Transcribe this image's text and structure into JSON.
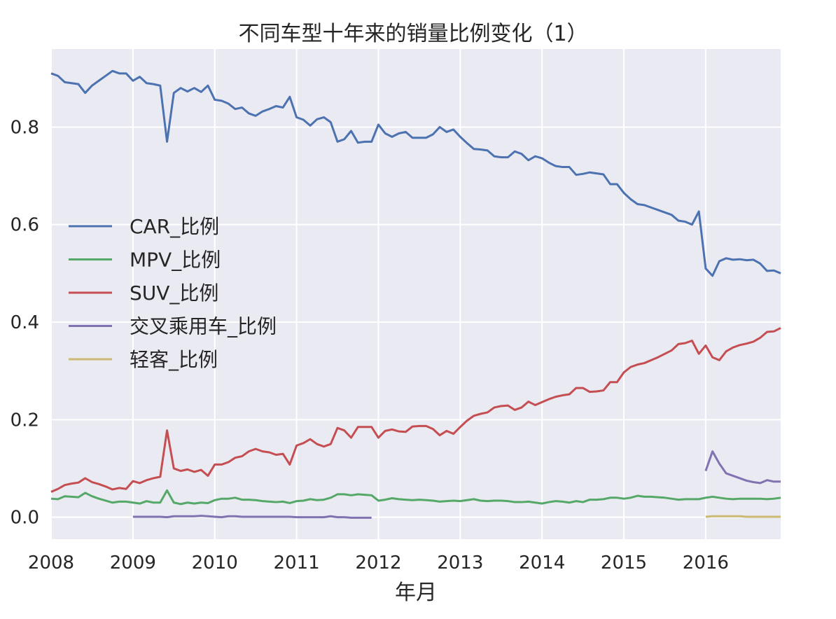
{
  "chart_data": {
    "type": "line",
    "title": "不同车型十年来的销量比例变化（1）",
    "xlabel": "年月",
    "ylabel": "",
    "x_ticks": [
      "2008",
      "2009",
      "2010",
      "2011",
      "2012",
      "2013",
      "2014",
      "2015",
      "2016"
    ],
    "y_ticks": [
      "0.0",
      "0.2",
      "0.4",
      "0.6",
      "0.8"
    ],
    "xlim": [
      "2008-01",
      "2016-12"
    ],
    "ylim": [
      -0.045,
      0.96
    ],
    "grid": true,
    "legend_position": "center-left",
    "x_start": "2008-01",
    "series": [
      {
        "name": "CAR_比例",
        "color": "#4C72B0",
        "start": "2008-01",
        "values": [
          0.91,
          0.905,
          0.892,
          0.89,
          0.888,
          0.87,
          0.885,
          0.895,
          0.905,
          0.915,
          0.91,
          0.91,
          0.895,
          0.903,
          0.89,
          0.888,
          0.885,
          0.77,
          0.87,
          0.88,
          0.873,
          0.88,
          0.872,
          0.885,
          0.856,
          0.854,
          0.848,
          0.837,
          0.84,
          0.828,
          0.823,
          0.832,
          0.837,
          0.843,
          0.84,
          0.862,
          0.82,
          0.815,
          0.803,
          0.816,
          0.82,
          0.81,
          0.77,
          0.775,
          0.792,
          0.768,
          0.77,
          0.77,
          0.805,
          0.787,
          0.78,
          0.787,
          0.79,
          0.778,
          0.778,
          0.778,
          0.785,
          0.8,
          0.79,
          0.795,
          0.78,
          0.767,
          0.755,
          0.754,
          0.752,
          0.74,
          0.738,
          0.738,
          0.75,
          0.745,
          0.732,
          0.74,
          0.736,
          0.727,
          0.72,
          0.718,
          0.718,
          0.702,
          0.704,
          0.707,
          0.705,
          0.703,
          0.683,
          0.683,
          0.665,
          0.652,
          0.642,
          0.64,
          0.635,
          0.63,
          0.625,
          0.62,
          0.608,
          0.606,
          0.6,
          0.627,
          0.51,
          0.495,
          0.525,
          0.531,
          0.528,
          0.529,
          0.527,
          0.528,
          0.52,
          0.505,
          0.506,
          0.5
        ]
      },
      {
        "name": "MPV_比例",
        "color": "#55A868",
        "start": "2008-01",
        "values": [
          0.038,
          0.037,
          0.043,
          0.042,
          0.041,
          0.05,
          0.043,
          0.038,
          0.034,
          0.03,
          0.032,
          0.032,
          0.03,
          0.028,
          0.033,
          0.03,
          0.03,
          0.055,
          0.03,
          0.027,
          0.03,
          0.028,
          0.03,
          0.029,
          0.035,
          0.038,
          0.038,
          0.04,
          0.036,
          0.036,
          0.035,
          0.033,
          0.032,
          0.031,
          0.032,
          0.029,
          0.033,
          0.034,
          0.037,
          0.035,
          0.036,
          0.04,
          0.047,
          0.047,
          0.045,
          0.047,
          0.046,
          0.045,
          0.034,
          0.036,
          0.039,
          0.037,
          0.036,
          0.035,
          0.036,
          0.035,
          0.034,
          0.032,
          0.033,
          0.034,
          0.033,
          0.035,
          0.037,
          0.034,
          0.033,
          0.034,
          0.034,
          0.033,
          0.031,
          0.031,
          0.032,
          0.03,
          0.028,
          0.031,
          0.033,
          0.032,
          0.03,
          0.033,
          0.031,
          0.036,
          0.036,
          0.037,
          0.04,
          0.04,
          0.038,
          0.04,
          0.044,
          0.042,
          0.042,
          0.041,
          0.04,
          0.038,
          0.036,
          0.037,
          0.037,
          0.037,
          0.04,
          0.042,
          0.04,
          0.038,
          0.037,
          0.038,
          0.038,
          0.038,
          0.038,
          0.037,
          0.038,
          0.04
        ]
      },
      {
        "name": "SUV_比例",
        "color": "#C44E52",
        "start": "2008-01",
        "values": [
          0.052,
          0.058,
          0.066,
          0.069,
          0.071,
          0.08,
          0.072,
          0.068,
          0.063,
          0.057,
          0.06,
          0.058,
          0.074,
          0.07,
          0.076,
          0.08,
          0.083,
          0.178,
          0.1,
          0.095,
          0.098,
          0.093,
          0.097,
          0.085,
          0.108,
          0.108,
          0.113,
          0.122,
          0.125,
          0.135,
          0.14,
          0.135,
          0.133,
          0.128,
          0.13,
          0.108,
          0.147,
          0.152,
          0.16,
          0.15,
          0.145,
          0.15,
          0.183,
          0.178,
          0.163,
          0.185,
          0.185,
          0.185,
          0.163,
          0.177,
          0.18,
          0.176,
          0.175,
          0.186,
          0.187,
          0.187,
          0.181,
          0.168,
          0.177,
          0.171,
          0.185,
          0.198,
          0.208,
          0.212,
          0.215,
          0.225,
          0.228,
          0.229,
          0.22,
          0.225,
          0.237,
          0.23,
          0.236,
          0.242,
          0.247,
          0.25,
          0.252,
          0.265,
          0.265,
          0.257,
          0.258,
          0.26,
          0.277,
          0.277,
          0.297,
          0.308,
          0.313,
          0.316,
          0.322,
          0.328,
          0.335,
          0.342,
          0.355,
          0.357,
          0.362,
          0.335,
          0.352,
          0.328,
          0.322,
          0.34,
          0.348,
          0.353,
          0.356,
          0.36,
          0.368,
          0.38,
          0.381,
          0.388
        ]
      },
      {
        "name": "交叉乘用车_比例",
        "color": "#8172B2",
        "segments": [
          {
            "start": "2009-01",
            "values": [
              0.001,
              0.001,
              0.001,
              0.001,
              0.001,
              0.0,
              0.002,
              0.002,
              0.002,
              0.002,
              0.003,
              0.002,
              0.001,
              0.0,
              0.002,
              0.002,
              0.001,
              0.001,
              0.001,
              0.001,
              0.001,
              0.001,
              0.001,
              0.001,
              0.0,
              0.0,
              0.0,
              0.0,
              0.0,
              0.002,
              0.0,
              0.0,
              -0.001,
              -0.001,
              -0.001,
              -0.001
            ]
          },
          {
            "start": "2016-01",
            "values": [
              0.095,
              0.135,
              0.11,
              0.09,
              0.085,
              0.08,
              0.075,
              0.072,
              0.07,
              0.076,
              0.073,
              0.073
            ]
          }
        ]
      },
      {
        "name": "轻客_比例",
        "color": "#CCB974",
        "segments": [
          {
            "start": "2016-01",
            "values": [
              0.001,
              0.002,
              0.002,
              0.002,
              0.002,
              0.002,
              0.001,
              0.001,
              0.001,
              0.001,
              0.001,
              0.001
            ]
          }
        ]
      }
    ]
  }
}
